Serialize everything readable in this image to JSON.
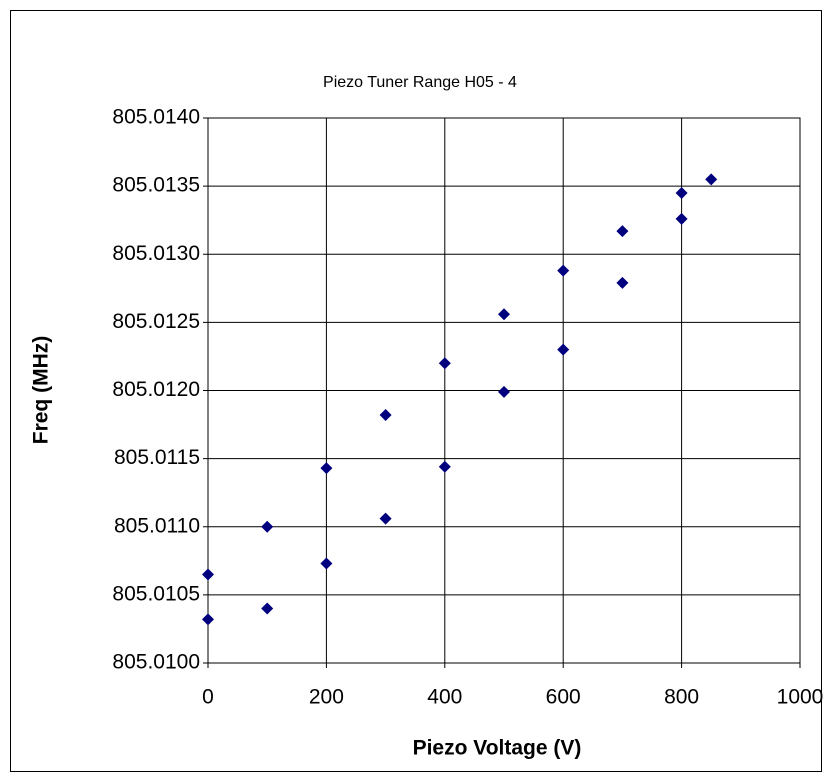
{
  "chart_data": {
    "type": "scatter",
    "title": "Piezo Tuner Range H05 - 4",
    "xlabel": "Piezo Voltage (V)",
    "ylabel": "Freq (MHz)",
    "x": [
      0,
      0,
      100,
      100,
      200,
      200,
      300,
      300,
      400,
      400,
      500,
      500,
      600,
      600,
      700,
      700,
      800,
      800,
      850
    ],
    "y": [
      805.01065,
      805.01032,
      805.011,
      805.0104,
      805.01143,
      805.01073,
      805.01182,
      805.01106,
      805.0122,
      805.01144,
      805.01256,
      805.01199,
      805.01288,
      805.0123,
      805.01317,
      805.01279,
      805.01345,
      805.01326,
      805.01355
    ],
    "color": "#00007f",
    "xlim": [
      0,
      1000
    ],
    "xticks": [
      0,
      200,
      400,
      600,
      800,
      1000
    ],
    "ylim": [
      805.01,
      805.014
    ],
    "yticks": [
      {
        "value": 805.01,
        "label": "805.0100"
      },
      {
        "value": 805.0105,
        "label": "805.0105"
      },
      {
        "value": 805.011,
        "label": "805.0110"
      },
      {
        "value": 805.0115,
        "label": "805.0115"
      },
      {
        "value": 805.012,
        "label": "805.0120"
      },
      {
        "value": 805.0125,
        "label": "805.0125"
      },
      {
        "value": 805.013,
        "label": "805.0130"
      },
      {
        "value": 805.0135,
        "label": "805.0135"
      },
      {
        "value": 805.014,
        "label": "805.0140"
      }
    ],
    "grid": true
  }
}
